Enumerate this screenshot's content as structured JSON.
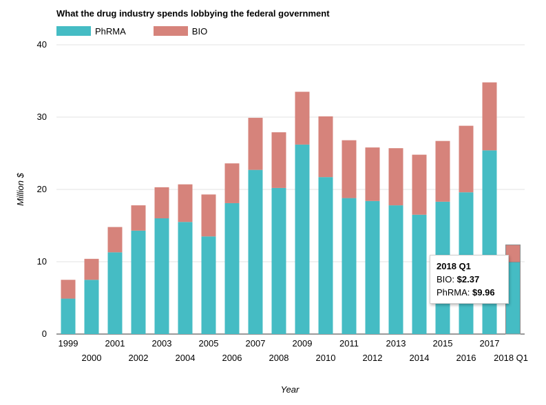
{
  "chart_data": {
    "type": "bar",
    "stacked": true,
    "title": "What the drug industry spends lobbying the federal government",
    "xlabel": "Year",
    "ylabel": "Million $",
    "ylim": [
      0,
      40
    ],
    "yticks": [
      "0",
      "10",
      "20",
      "30",
      "40"
    ],
    "grid": true,
    "legend_position": "top-left",
    "categories": [
      "1999",
      "2000",
      "2001",
      "2002",
      "2003",
      "2004",
      "2005",
      "2006",
      "2007",
      "2008",
      "2009",
      "2010",
      "2011",
      "2012",
      "2013",
      "2014",
      "2015",
      "2016",
      "2017",
      "2018 Q1"
    ],
    "series": [
      {
        "name": "PhRMA",
        "color": "#45BCC4",
        "values": [
          4.9,
          7.5,
          11.3,
          14.3,
          16.0,
          15.5,
          13.5,
          18.1,
          22.7,
          20.2,
          26.2,
          21.7,
          18.8,
          18.4,
          17.8,
          16.5,
          18.3,
          19.6,
          25.4,
          9.96
        ]
      },
      {
        "name": "BIO",
        "color": "#D6837B",
        "values": [
          2.6,
          2.9,
          3.5,
          3.5,
          4.3,
          5.2,
          5.8,
          5.5,
          7.2,
          7.7,
          7.3,
          8.4,
          8.0,
          7.4,
          7.9,
          8.3,
          8.4,
          9.2,
          9.4,
          2.37
        ]
      }
    ],
    "highlighted_category": "2018 Q1",
    "tooltip": {
      "title": "2018 Q1",
      "rows": [
        {
          "label": "BIO:",
          "value": "$2.37"
        },
        {
          "label": "PhRMA:",
          "value": "$9.96"
        }
      ]
    }
  }
}
